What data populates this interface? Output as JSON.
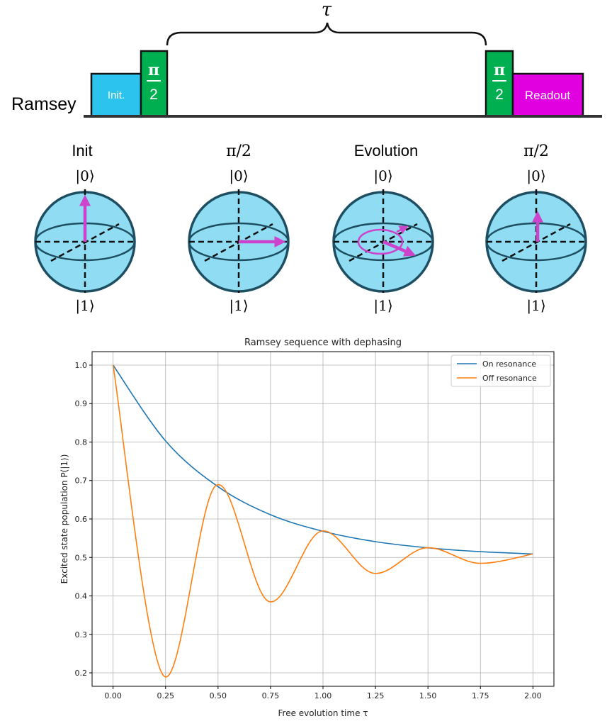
{
  "sequence": {
    "row_label": "Ramsey",
    "tau_label": "τ",
    "blocks": {
      "init": "Init.",
      "pi_half_1_top": "π",
      "pi_half_1_bottom": "2",
      "pi_half_2_top": "π",
      "pi_half_2_bottom": "2",
      "readout": "Readout"
    },
    "colors": {
      "init": "#2cc4ee",
      "pulse": "#00b050",
      "readout": "#e000e0",
      "baseline": "#333333"
    }
  },
  "bloch": {
    "ket0": "|0⟩",
    "ket1": "|1⟩",
    "titles": [
      "Init",
      "π/2",
      "Evolution",
      "π/2"
    ],
    "colors": {
      "sphere": "#90dcf2",
      "outline": "#1e4e62",
      "arrow": "#cc44cc"
    }
  },
  "chart_data": {
    "type": "line",
    "title": "Ramsey sequence with dephasing",
    "xlabel": "Free evolution time τ",
    "ylabel": "Excited state population P(|1⟩)",
    "xlim": [
      -0.1,
      2.1
    ],
    "ylim": [
      0.165,
      1.035
    ],
    "xticks": [
      "0.00",
      "0.25",
      "0.50",
      "0.75",
      "1.00",
      "1.25",
      "1.50",
      "1.75",
      "2.00"
    ],
    "yticks": [
      "0.2",
      "0.3",
      "0.4",
      "0.5",
      "0.6",
      "0.7",
      "0.8",
      "0.9",
      "1.0"
    ],
    "grid": true,
    "legend_position": "top-right",
    "series": [
      {
        "name": "On resonance",
        "color": "#1f77b4",
        "x": [
          0,
          0.25,
          0.5,
          0.75,
          1.0,
          1.25,
          1.5,
          1.75,
          2.0
        ],
        "y": [
          1.0,
          0.803,
          0.684,
          0.611,
          0.568,
          0.541,
          0.525,
          0.515,
          0.509
        ]
      },
      {
        "name": "Off resonance",
        "color": "#ff7f0e",
        "x": [
          0,
          0.24,
          0.49,
          0.74,
          0.99,
          1.24,
          1.49,
          1.74,
          2.0
        ],
        "y": [
          1.0,
          0.193,
          0.687,
          0.386,
          0.568,
          0.459,
          0.525,
          0.485,
          0.509
        ]
      }
    ]
  }
}
